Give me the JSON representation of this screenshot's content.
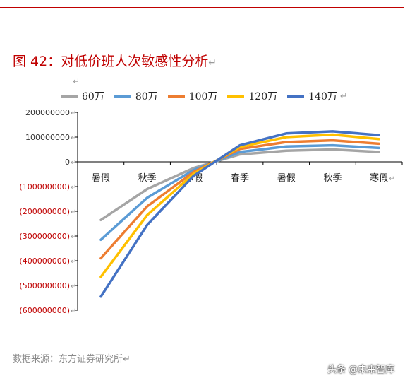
{
  "figure_title": "图 42：对低价班人次敏感性分析",
  "return_mark": "↵",
  "legend_mark": "↵",
  "source": "数据来源：东方证券研究所↵",
  "watermark": "头条 @未来智库",
  "colors": {
    "rule": "#c00000",
    "title": "#c00000",
    "negative_tick": "#c00000",
    "positive_tick": "#333333",
    "axis": "#000000"
  },
  "chart_data": {
    "type": "line",
    "title": "",
    "xlabel": "",
    "ylabel": "",
    "categories": [
      "暑假",
      "秋季",
      "寒假",
      "春季",
      "暑假",
      "秋季",
      "寒假"
    ],
    "ylim": [
      -600000000,
      200000000
    ],
    "ytick_values": [
      200000000,
      100000000,
      0,
      -100000000,
      -200000000,
      -300000000,
      -400000000,
      -500000000,
      -600000000
    ],
    "ytick_labels": [
      "200000000",
      "100000000",
      "0",
      "(100000000)",
      "(200000000)",
      "(300000000)",
      "(400000000)",
      "(500000000)",
      "(600000000)"
    ],
    "grid": false,
    "legend": "top",
    "series": [
      {
        "name": "60万",
        "color": "#a5a5a5",
        "values": [
          -235000000,
          -110000000,
          -25000000,
          30000000,
          45000000,
          50000000,
          40000000
        ]
      },
      {
        "name": "80万",
        "color": "#5b9bd5",
        "values": [
          -315000000,
          -145000000,
          -33000000,
          40000000,
          62000000,
          67000000,
          56000000
        ]
      },
      {
        "name": "100万",
        "color": "#ed7d31",
        "values": [
          -390000000,
          -180000000,
          -41000000,
          52000000,
          80000000,
          87000000,
          73000000
        ]
      },
      {
        "name": "120万",
        "color": "#ffc000",
        "values": [
          -465000000,
          -215000000,
          -49000000,
          60000000,
          100000000,
          110000000,
          92000000
        ]
      },
      {
        "name": "140万",
        "color": "#4472c4",
        "values": [
          -545000000,
          -255000000,
          -57000000,
          67000000,
          115000000,
          123000000,
          108000000
        ]
      }
    ]
  }
}
